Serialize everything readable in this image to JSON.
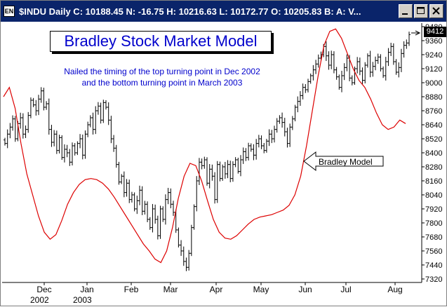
{
  "window": {
    "title": "$INDU Daily C: 10188.45 N:   -16.75 H: 10216.63 L: 10172.77 O: 10205.83 B: A: V...",
    "icon_label": "EN",
    "buttons": [
      "minimize",
      "maximize",
      "close"
    ]
  },
  "chart_data": {
    "type": "line",
    "title": "Bradley Stock Market Model",
    "subtitle": "Nailed the timing of the top turning point in Dec 2002\nand the bottom turning point in March 2003",
    "callout": "Bradley Model",
    "last_price_label": "9412",
    "y_ticks": [
      9480,
      9360,
      9240,
      9120,
      9000,
      8880,
      8760,
      8640,
      8520,
      8400,
      8280,
      8160,
      8040,
      7920,
      7800,
      7680,
      7560,
      7440,
      7320
    ],
    "ylim": [
      7290,
      9510
    ],
    "x_ticks": [
      {
        "month": "Dec",
        "year": "2002"
      },
      {
        "month": "Jan",
        "year": "2003"
      },
      {
        "month": "Feb",
        "year": ""
      },
      {
        "month": "Mar",
        "year": ""
      },
      {
        "month": "Apr",
        "year": ""
      },
      {
        "month": "May",
        "year": ""
      },
      {
        "month": "Jun",
        "year": ""
      },
      {
        "month": "Jul",
        "year": ""
      },
      {
        "month": "Aug",
        "year": ""
      }
    ],
    "grid": false,
    "series": [
      {
        "name": "$INDU",
        "style": "ohlc-bars",
        "color": "#000000",
        "close": [
          8480,
          8560,
          8620,
          8690,
          8520,
          8650,
          8700,
          8560,
          8600,
          8720,
          8850,
          8810,
          8760,
          8860,
          8930,
          8790,
          8820,
          8600,
          8490,
          8560,
          8420,
          8530,
          8360,
          8430,
          8400,
          8320,
          8460,
          8400,
          8480,
          8520,
          8380,
          8560,
          8640,
          8700,
          8600,
          8760,
          8800,
          8680,
          8830,
          8790,
          8680,
          8520,
          8440,
          8300,
          8150,
          8200,
          8060,
          8140,
          8000,
          8040,
          7920,
          7990,
          8080,
          7900,
          7960,
          7830,
          7760,
          7920,
          7830,
          7690,
          7920,
          7830,
          8000,
          8060,
          7960,
          7890,
          7740,
          7610,
          7560,
          7470,
          7420,
          7540,
          7760,
          7940,
          8160,
          8320,
          8290,
          8340,
          8140,
          8260,
          8200,
          8000,
          8300,
          8180,
          8280,
          8220,
          8300,
          8180,
          8300,
          8340,
          8240,
          8340,
          8410,
          8360,
          8460,
          8430,
          8380,
          8480,
          8520,
          8460,
          8420,
          8500,
          8560,
          8520,
          8600,
          8670,
          8700,
          8660,
          8580,
          8480,
          8620,
          8690,
          8790,
          8840,
          8890,
          8960,
          8940,
          9010,
          9060,
          9110,
          9160,
          9210,
          9240,
          9310,
          9230,
          9150,
          9240,
          9110,
          9050,
          8960,
          9060,
          9130,
          9210,
          9040,
          9000,
          9120,
          9180,
          9100,
          9020,
          9150,
          9230,
          9090,
          9140,
          9190,
          9220,
          9120,
          9060,
          9180,
          9260,
          9310,
          9180,
          9090,
          9130,
          9250,
          9320,
          9340,
          9412
        ]
      },
      {
        "name": "Bradley Model",
        "style": "line",
        "color": "#dd0000",
        "values": [
          8880,
          8960,
          8780,
          8480,
          8220,
          8040,
          7860,
          7720,
          7660,
          7700,
          7820,
          7960,
          8060,
          8130,
          8170,
          8180,
          8170,
          8140,
          8090,
          8020,
          7940,
          7860,
          7780,
          7700,
          7620,
          7560,
          7490,
          7460,
          7560,
          7760,
          8010,
          8200,
          8310,
          8290,
          8160,
          7990,
          7830,
          7720,
          7670,
          7660,
          7690,
          7740,
          7790,
          7830,
          7850,
          7860,
          7870,
          7890,
          7910,
          7950,
          8040,
          8200,
          8460,
          8760,
          9060,
          9320,
          9440,
          9460,
          9380,
          9250,
          9120,
          9020,
          8960,
          8860,
          8740,
          8640,
          8600,
          8620,
          8680,
          8650
        ]
      }
    ]
  }
}
